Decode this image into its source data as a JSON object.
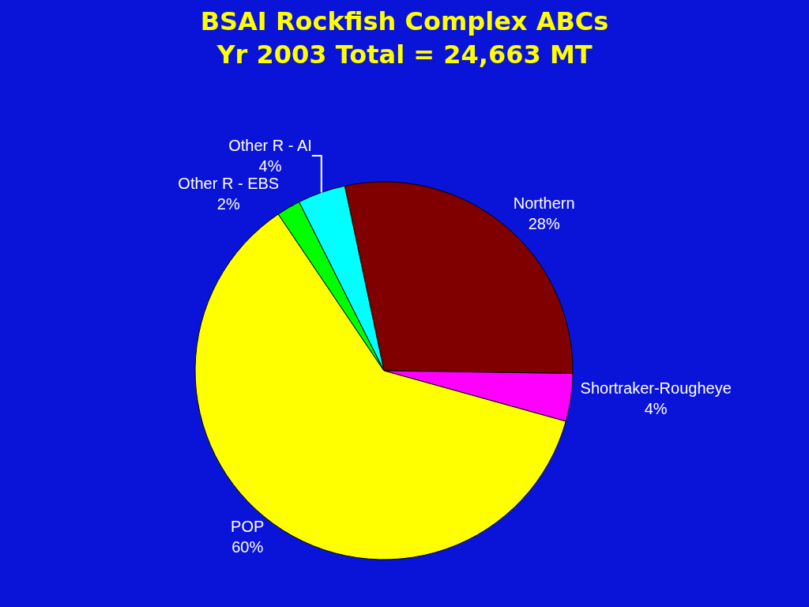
{
  "chart_data": {
    "type": "pie",
    "title": "BSAI Rockfish Complex ABCs\nYr 2003 Total = 24,663 MT",
    "categories": [
      "Northern",
      "Shortraker-Rougheye",
      "POP",
      "Other R - EBS",
      "Other R - AI"
    ],
    "values": [
      28,
      4,
      60,
      2,
      4
    ],
    "value_labels": [
      "28%",
      "4%",
      "60%",
      "2%",
      "4%"
    ],
    "colors": [
      "#800000",
      "#ff00ff",
      "#ffff00",
      "#00ff00",
      "#00ffff"
    ],
    "legend": false
  }
}
